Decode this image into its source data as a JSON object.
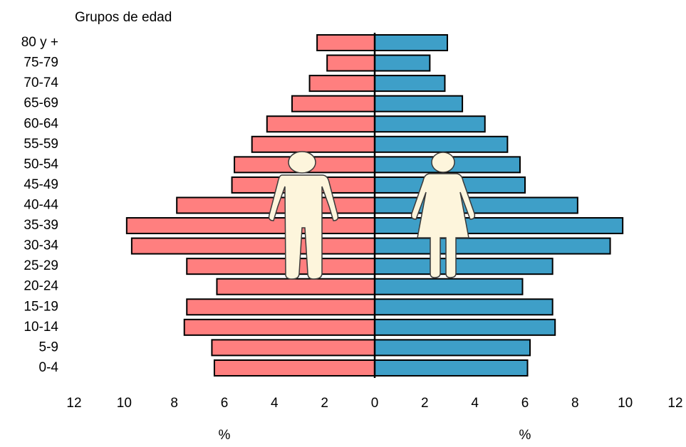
{
  "chart_data": {
    "type": "pyramid",
    "ylabel": "Grupos de edad",
    "xlabels": [
      "%",
      "%"
    ],
    "categories": [
      "80 y +",
      "75-79",
      "70-74",
      "65-69",
      "60-64",
      "55-59",
      "50-54",
      "45-49",
      "40-44",
      "35-39",
      "30-34",
      "25-29",
      "20-24",
      "15-19",
      "10-14",
      "5-9",
      "0-4"
    ],
    "series": [
      {
        "side": "left",
        "color": "#ff7f7f",
        "values": [
          2.3,
          1.9,
          2.6,
          3.3,
          4.3,
          4.9,
          5.6,
          5.7,
          7.9,
          9.9,
          9.7,
          7.5,
          6.3,
          7.5,
          7.6,
          6.5,
          6.4
        ]
      },
      {
        "side": "right",
        "color": "#3e9fc8",
        "values": [
          2.9,
          2.2,
          2.8,
          3.5,
          4.4,
          5.3,
          5.8,
          6.0,
          8.1,
          9.9,
          9.4,
          7.1,
          5.9,
          7.1,
          7.2,
          6.2,
          6.1
        ]
      }
    ],
    "xlim": [
      -12,
      12
    ],
    "xticks": [
      {
        "value": -12,
        "label": "12"
      },
      {
        "value": -10,
        "label": "10"
      },
      {
        "value": -8,
        "label": "8"
      },
      {
        "value": -6,
        "label": "6"
      },
      {
        "value": -4,
        "label": "4"
      },
      {
        "value": -2,
        "label": "2"
      },
      0,
      2,
      4,
      6,
      8,
      10,
      12
    ]
  }
}
